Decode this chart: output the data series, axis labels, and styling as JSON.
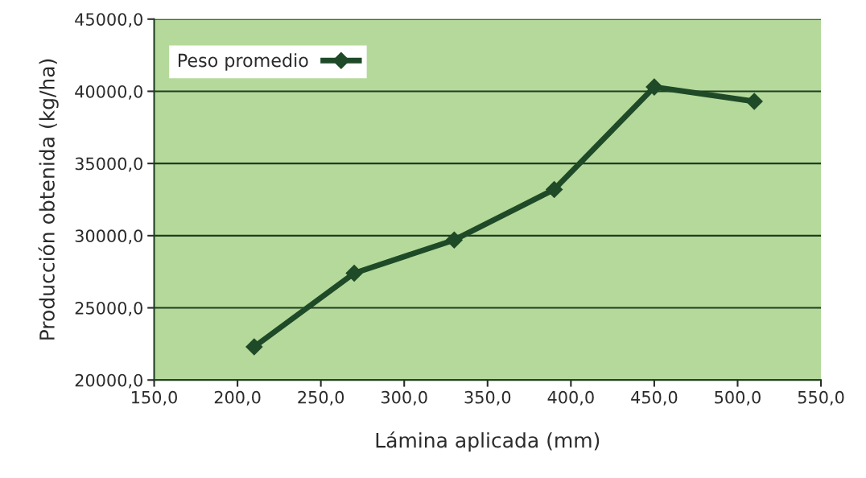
{
  "chart_data": {
    "type": "line",
    "xlabel": "Lámina aplicada (mm)",
    "ylabel": "Producción obtenida (kg/ha)",
    "x": [
      210,
      270,
      330,
      390,
      450,
      510
    ],
    "series": [
      {
        "name": "Peso promedio",
        "color": "#1f4a28",
        "values": [
          22300,
          27400,
          29700,
          33200,
          40300,
          39300
        ]
      }
    ],
    "xlim": [
      150,
      550
    ],
    "ylim": [
      20000,
      45000
    ],
    "xticks": [
      {
        "value": 150,
        "label": "150,0"
      },
      {
        "value": 200,
        "label": "200,0"
      },
      {
        "value": 250,
        "label": "250,0"
      },
      {
        "value": 300,
        "label": "300,0"
      },
      {
        "value": 350,
        "label": "350,0"
      },
      {
        "value": 400,
        "label": "400,0"
      },
      {
        "value": 450,
        "label": "450,0"
      },
      {
        "value": 500,
        "label": "500,0"
      },
      {
        "value": 550,
        "label": "550,0"
      }
    ],
    "yticks": [
      {
        "value": 20000,
        "label": "20000,0"
      },
      {
        "value": 25000,
        "label": "25000,0"
      },
      {
        "value": 30000,
        "label": "30000,0"
      },
      {
        "value": 35000,
        "label": "35000,0"
      },
      {
        "value": 40000,
        "label": "40000,0"
      },
      {
        "value": 45000,
        "label": "45000,0"
      }
    ],
    "grid": "y",
    "legend": "top left",
    "marker": "diamond",
    "line_style": "solid"
  }
}
